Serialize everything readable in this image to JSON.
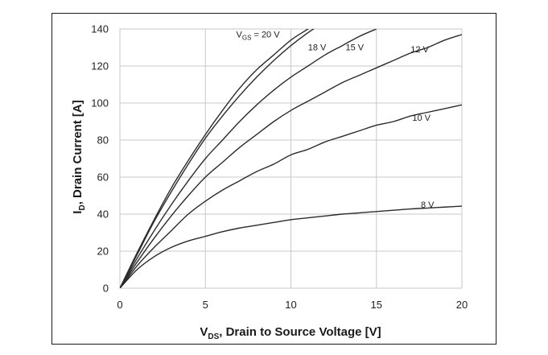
{
  "chart_data": {
    "type": "line",
    "title": "",
    "xlabel": {
      "main": "V",
      "sub": "DS",
      "rest": ", Drain to Source Voltage [V]"
    },
    "ylabel": {
      "main": "I",
      "sub": "D",
      "rest": ", Drain Current [A]"
    },
    "xlim": [
      0,
      20
    ],
    "ylim": [
      0,
      140
    ],
    "xticks": [
      0,
      5,
      10,
      15,
      20
    ],
    "yticks": [
      0,
      20,
      40,
      60,
      80,
      100,
      120,
      140
    ],
    "grid": true,
    "series": [
      {
        "name": "20 V",
        "label": {
          "prefix": "V",
          "sub": "GS",
          "text": " = 20 V"
        },
        "x": [
          0,
          1,
          2,
          3,
          4,
          5,
          6,
          7,
          8,
          9,
          10,
          11,
          12
        ],
        "y": [
          0,
          19,
          37,
          54,
          69,
          83,
          96,
          108,
          118,
          126,
          134,
          140,
          146
        ]
      },
      {
        "name": "18 V",
        "label": {
          "prefix": "",
          "sub": "",
          "text": "18 V"
        },
        "x": [
          0,
          1,
          2,
          3,
          4,
          5,
          6,
          7,
          8,
          9,
          10,
          11,
          12
        ],
        "y": [
          0,
          18,
          36,
          52,
          67,
          81,
          93,
          104,
          114,
          123,
          131,
          138,
          144
        ]
      },
      {
        "name": "15 V",
        "label": {
          "prefix": "",
          "sub": "",
          "text": "15 V"
        },
        "x": [
          0,
          1,
          2,
          3,
          4,
          5,
          6,
          7,
          8,
          9,
          10,
          11,
          12,
          13,
          14,
          15
        ],
        "y": [
          0,
          16,
          31,
          45,
          58,
          70,
          80,
          90,
          99,
          107,
          114,
          120,
          126,
          131,
          136,
          140
        ]
      },
      {
        "name": "12 V",
        "label": {
          "prefix": "",
          "sub": "",
          "text": "12 V"
        },
        "x": [
          0,
          1,
          2,
          3,
          4,
          5,
          6,
          7,
          8,
          9,
          10,
          11,
          12,
          13,
          14,
          15,
          16,
          17,
          18,
          19,
          20
        ],
        "y": [
          0,
          14,
          27,
          39,
          50,
          60,
          68,
          76,
          83,
          90,
          96,
          101,
          106,
          111,
          115,
          119,
          123,
          127,
          130,
          134,
          137
        ]
      },
      {
        "name": "10 V",
        "label": {
          "prefix": "",
          "sub": "",
          "text": "10 V"
        },
        "x": [
          0,
          1,
          2,
          3,
          4,
          5,
          6,
          7,
          8,
          9,
          10,
          11,
          12,
          13,
          14,
          15,
          16,
          17,
          18,
          19,
          20
        ],
        "y": [
          0,
          12,
          22,
          31,
          40,
          47,
          53,
          58,
          63,
          67,
          72,
          75,
          79,
          82,
          85,
          88,
          90,
          93,
          95,
          97,
          99
        ]
      },
      {
        "name": "8 V",
        "label": {
          "prefix": "",
          "sub": "",
          "text": "8 V"
        },
        "x": [
          0,
          1,
          2,
          3,
          4,
          5,
          6,
          7,
          8,
          9,
          10,
          11,
          12,
          13,
          14,
          15,
          16,
          17,
          18,
          19,
          20
        ],
        "y": [
          0,
          10,
          17,
          22,
          25.5,
          28,
          30.5,
          32.5,
          34,
          35.5,
          37,
          38,
          39,
          40,
          40.7,
          41.4,
          42.1,
          42.8,
          43.3,
          43.8,
          44.3
        ]
      }
    ]
  }
}
